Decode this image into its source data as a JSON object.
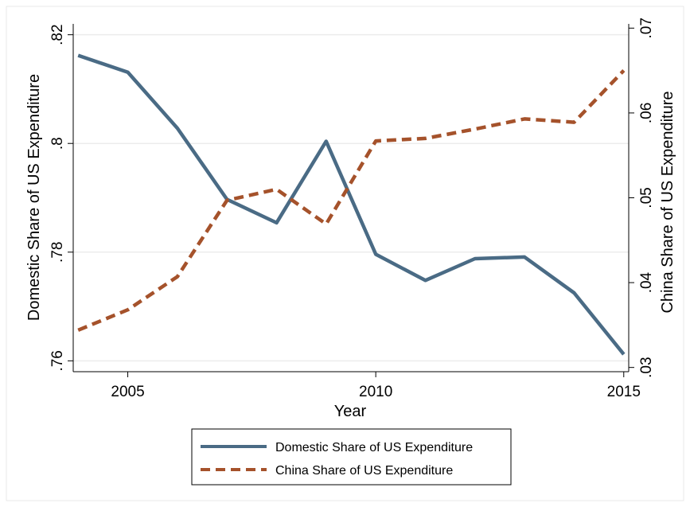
{
  "chart_data": {
    "type": "line",
    "xlabel": "Year",
    "ylabel_left": "Domestic Share of US Expenditure",
    "ylabel_right": "China Share of US Expenditure",
    "x": [
      2004,
      2005,
      2006,
      2007,
      2008,
      2009,
      2010,
      2011,
      2012,
      2013,
      2014,
      2015
    ],
    "xlim": [
      2003.9,
      2015.1
    ],
    "xticks": [
      2005,
      2010,
      2015
    ],
    "xtick_labels": [
      "2005",
      "2010",
      "2015"
    ],
    "ylim_left": [
      0.758,
      0.822
    ],
    "yticks_left": [
      0.76,
      0.78,
      0.8,
      0.82
    ],
    "ytick_labels_left": [
      ".76",
      ".78",
      ".8",
      ".82"
    ],
    "ylim_right": [
      0.0295,
      0.0705
    ],
    "yticks_right": [
      0.03,
      0.04,
      0.05,
      0.06,
      0.07
    ],
    "ytick_labels_right": [
      ".03",
      ".04",
      ".05",
      ".06",
      ".07"
    ],
    "grid": true,
    "legend_position": "bottom",
    "series": [
      {
        "name": "Domestic Share of US Expenditure",
        "axis": "left",
        "style": "solid",
        "color": "#4a6b85",
        "values": [
          0.8162,
          0.8131,
          0.8028,
          0.7897,
          0.7854,
          0.8004,
          0.7796,
          0.7748,
          0.7788,
          0.7791,
          0.7725,
          0.7612
        ]
      },
      {
        "name": "China Share of US Expenditure",
        "axis": "right",
        "style": "dashed",
        "color": "#a5522b",
        "values": [
          0.0344,
          0.0368,
          0.0407,
          0.0497,
          0.051,
          0.0469,
          0.0567,
          0.057,
          0.0581,
          0.0593,
          0.0589,
          0.065
        ]
      }
    ]
  }
}
